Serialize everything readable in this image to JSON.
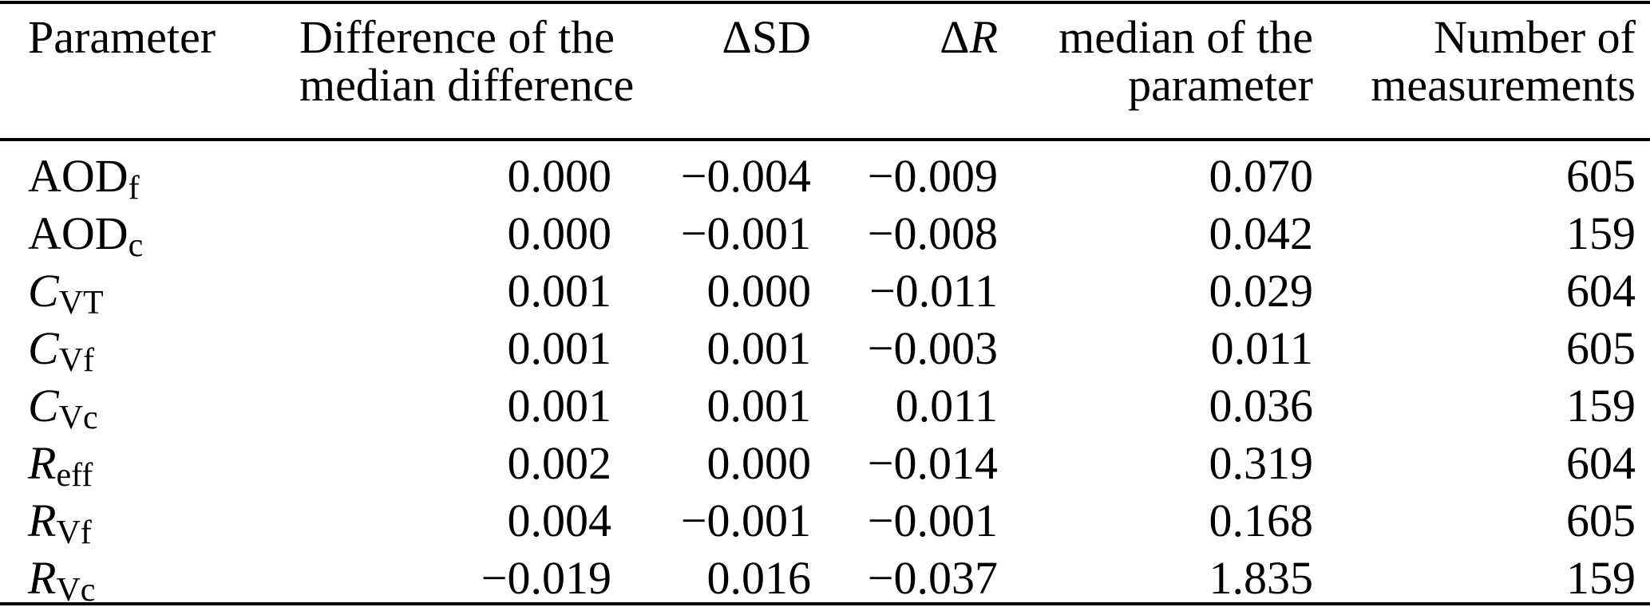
{
  "page": {
    "background": "#ffffff",
    "text_color": "#000000",
    "rule_color": "#000000"
  },
  "table": {
    "header": {
      "col1": {
        "line1": "Parameter"
      },
      "col2": {
        "line1": "Difference of the",
        "line2": "median difference"
      },
      "col3": {
        "line1": "ΔSD"
      },
      "col4": {
        "prefix": "Δ",
        "symbol": "R"
      },
      "col5": {
        "line1": "median of the",
        "line2": "parameter"
      },
      "col6": {
        "line1": "Number of",
        "line2": "measurements"
      }
    },
    "rows": [
      {
        "param": "AOD",
        "sub": "f",
        "diff_of_median_difference": "0.000",
        "delta_sd": "−0.004",
        "delta_r": "−0.009",
        "median_of_parameter": "0.070",
        "n_measurements": "605"
      },
      {
        "param": "AOD",
        "sub": "c",
        "diff_of_median_difference": "0.000",
        "delta_sd": "−0.001",
        "delta_r": "−0.008",
        "median_of_parameter": "0.042",
        "n_measurements": "159"
      },
      {
        "param": "C",
        "sub": "VT",
        "diff_of_median_difference": "0.001",
        "delta_sd": "0.000",
        "delta_r": "−0.011",
        "median_of_parameter": "0.029",
        "n_measurements": "604"
      },
      {
        "param": "C",
        "sub": "Vf",
        "diff_of_median_difference": "0.001",
        "delta_sd": "0.001",
        "delta_r": "−0.003",
        "median_of_parameter": "0.011",
        "n_measurements": "605"
      },
      {
        "param": "C",
        "sub": "Vc",
        "diff_of_median_difference": "0.001",
        "delta_sd": "0.001",
        "delta_r": "0.011",
        "median_of_parameter": "0.036",
        "n_measurements": "159"
      },
      {
        "param": "R",
        "sub": "eff",
        "diff_of_median_difference": "0.002",
        "delta_sd": "0.000",
        "delta_r": "−0.014",
        "median_of_parameter": "0.319",
        "n_measurements": "604"
      },
      {
        "param": "R",
        "sub": "Vf",
        "diff_of_median_difference": "0.004",
        "delta_sd": "−0.001",
        "delta_r": "−0.001",
        "median_of_parameter": "0.168",
        "n_measurements": "605"
      },
      {
        "param": "R",
        "sub": "Vc",
        "diff_of_median_difference": "−0.019",
        "delta_sd": "0.016",
        "delta_r": "−0.037",
        "median_of_parameter": "1.835",
        "n_measurements": "159"
      }
    ]
  }
}
